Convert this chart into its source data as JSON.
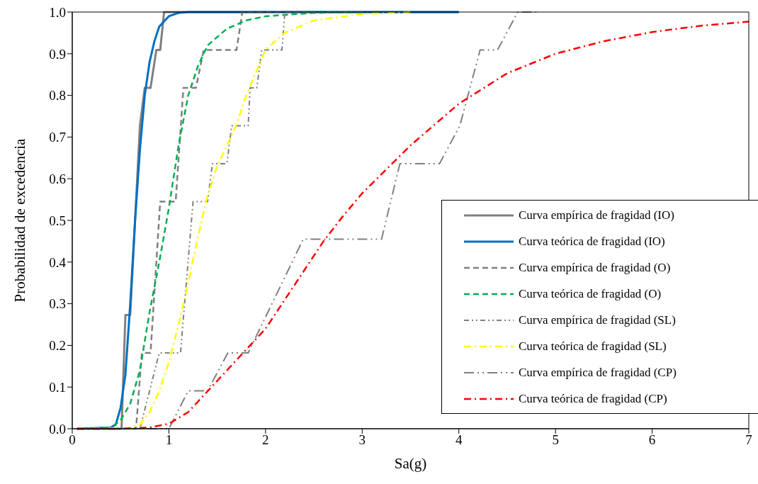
{
  "chart_data": {
    "type": "line",
    "xlabel": "Sa(g)",
    "ylabel": "Probabilidad de excedencia",
    "xlim": [
      0,
      7
    ],
    "xticks": [
      0,
      1,
      2,
      3,
      4,
      5,
      6,
      7
    ],
    "ylim": [
      0,
      1
    ],
    "yticks": [
      {
        "value": 0,
        "label": "0.0"
      },
      {
        "value": 0.1,
        "label": "0.1"
      },
      {
        "value": 0.2,
        "label": "0.2"
      },
      {
        "value": 0.3,
        "label": "0.3"
      },
      {
        "value": 0.4,
        "label": "0.4"
      },
      {
        "value": 0.5,
        "label": "0.5"
      },
      {
        "value": 0.6,
        "label": "0.6"
      },
      {
        "value": 0.7,
        "label": "0.7"
      },
      {
        "value": 0.8,
        "label": "0.8"
      },
      {
        "value": 0.9,
        "label": "0.9"
      },
      {
        "value": 1,
        "label": "1.0"
      }
    ],
    "grid": false,
    "legend": "bottom right",
    "marker": "none",
    "series": [
      {
        "name": "Curva empírica de fragidad (IO)",
        "color": "#808080",
        "line_style": "solid",
        "x": [
          0.05,
          0.51,
          0.55,
          0.6,
          0.7,
          0.75,
          0.81,
          0.87,
          0.91,
          0.95,
          4
        ],
        "values": [
          0,
          0,
          0.273,
          0.273,
          0.727,
          0.818,
          0.818,
          0.909,
          0.909,
          1,
          1
        ]
      },
      {
        "name": "Curva teórica de fragidad (IO)",
        "color": "#0070c0",
        "line_style": "solid",
        "x": [
          0.05,
          0.4,
          0.45,
          0.5,
          0.55,
          0.6,
          0.65,
          0.7,
          0.75,
          0.8,
          0.85,
          0.9,
          1,
          1.1,
          1.2,
          4
        ],
        "values": [
          0,
          0.003,
          0.01,
          0.05,
          0.13,
          0.3,
          0.5,
          0.67,
          0.8,
          0.88,
          0.93,
          0.965,
          0.99,
          0.998,
          1,
          1
        ]
      },
      {
        "name": "Curva empírica de fragidad (O)",
        "color": "#808080",
        "line_style": "dashed",
        "x": [
          0.05,
          0.66,
          0.72,
          0.81,
          0.91,
          1.07,
          1.15,
          1.28,
          1.36,
          1.7,
          1.76,
          2.5
        ],
        "values": [
          0,
          0,
          0.182,
          0.182,
          0.545,
          0.545,
          0.818,
          0.818,
          0.909,
          0.909,
          1,
          1
        ]
      },
      {
        "name": "Curva teórica de fragidad (O)",
        "color": "#00b050",
        "line_style": "dashed",
        "x": [
          0.05,
          0.4,
          0.5,
          0.6,
          0.7,
          0.8,
          0.9,
          1,
          1.1,
          1.2,
          1.3,
          1.4,
          1.6,
          1.8,
          2,
          2.5,
          3
        ],
        "values": [
          0,
          0.003,
          0.02,
          0.06,
          0.14,
          0.28,
          0.4,
          0.53,
          0.68,
          0.8,
          0.87,
          0.92,
          0.96,
          0.98,
          0.99,
          0.998,
          1
        ]
      },
      {
        "name": "Curva empírica de fragidad (SL)",
        "color": "#808080",
        "line_style": "dashdotdot",
        "x": [
          0.05,
          0.7,
          0.9,
          1.12,
          1.25,
          1.4,
          1.45,
          1.6,
          1.65,
          1.82,
          1.84,
          1.91,
          1.96,
          2.17,
          2.2,
          3
        ],
        "values": [
          0,
          0,
          0.182,
          0.182,
          0.545,
          0.545,
          0.636,
          0.636,
          0.727,
          0.727,
          0.818,
          0.818,
          0.909,
          0.909,
          1,
          1
        ]
      },
      {
        "name": "Curva teórica de fragidad (SL)",
        "color": "#ffff00",
        "line_style": "dashdot",
        "x": [
          0.05,
          0.6,
          0.7,
          0.8,
          0.9,
          1,
          1.1,
          1.2,
          1.3,
          1.4,
          1.5,
          1.6,
          1.7,
          1.8,
          2,
          2.2,
          2.5,
          3,
          3.5
        ],
        "values": [
          0,
          0.002,
          0.01,
          0.04,
          0.09,
          0.16,
          0.25,
          0.35,
          0.46,
          0.56,
          0.63,
          0.68,
          0.73,
          0.8,
          0.91,
          0.95,
          0.98,
          0.995,
          1
        ]
      },
      {
        "name": "Curva empírica de fragidad (CP)",
        "color": "#808080",
        "line_style": "longdashdotdot",
        "x": [
          0.05,
          1,
          1.2,
          1.4,
          1.61,
          1.82,
          2.39,
          3.2,
          3.39,
          3.8,
          4.01,
          4.22,
          4.4,
          4.61,
          4.8
        ],
        "values": [
          0,
          0,
          0.091,
          0.091,
          0.182,
          0.182,
          0.455,
          0.455,
          0.636,
          0.636,
          0.727,
          0.909,
          0.909,
          1,
          1
        ]
      },
      {
        "name": "Curva teórica de fragidad (CP)",
        "color": "#ff0000",
        "line_style": "dashdot",
        "x": [
          0.05,
          0.5,
          0.8,
          1,
          1.2,
          1.4,
          1.6,
          1.8,
          2,
          2.2,
          2.4,
          2.6,
          2.8,
          3,
          3.5,
          4,
          4.5,
          5,
          5.5,
          6,
          6.5,
          7
        ],
        "values": [
          0,
          0,
          0.003,
          0.012,
          0.04,
          0.09,
          0.14,
          0.19,
          0.24,
          0.31,
          0.38,
          0.45,
          0.51,
          0.565,
          0.68,
          0.78,
          0.853,
          0.9,
          0.93,
          0.952,
          0.967,
          0.977
        ]
      }
    ]
  }
}
